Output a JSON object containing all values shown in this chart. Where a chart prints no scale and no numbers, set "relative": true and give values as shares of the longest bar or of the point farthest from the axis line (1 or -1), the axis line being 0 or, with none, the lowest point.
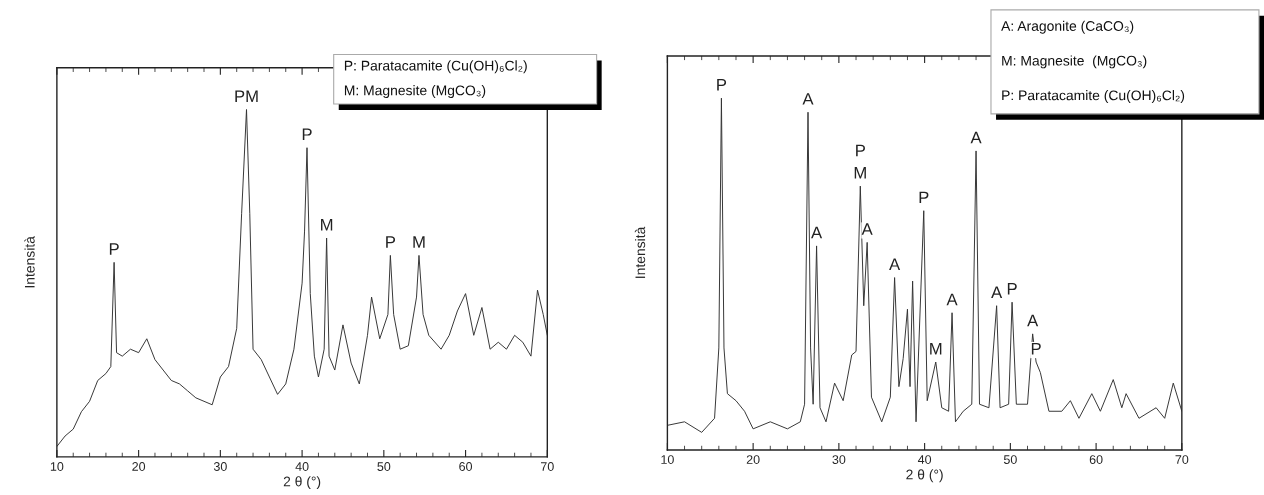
{
  "chart_data": [
    {
      "type": "line",
      "relative": true,
      "xlabel": "2 θ (°)",
      "ylabel": "Intensità",
      "xlim": [
        10,
        70
      ],
      "xticks": [
        10,
        20,
        30,
        40,
        50,
        60,
        70
      ],
      "tick_labels": "x",
      "series": [
        {
          "color": "#333333",
          "x": [
            10,
            11,
            12,
            13,
            14,
            15,
            16,
            16.6,
            17.0,
            17.3,
            18,
            19,
            20,
            21,
            22,
            23,
            24,
            25,
            26,
            27,
            28,
            29,
            30,
            31,
            32,
            32.6,
            33.2,
            33.6,
            34,
            35,
            36,
            37,
            38,
            39,
            40,
            40.3,
            40.6,
            41,
            41.5,
            42,
            42.7,
            43.0,
            43.3,
            44,
            45,
            46,
            47,
            48,
            48.5,
            49.5,
            50.5,
            50.8,
            51.2,
            52,
            53,
            54,
            54.3,
            54.8,
            55.5,
            57,
            58,
            59,
            60,
            61,
            62,
            63,
            64,
            65,
            66,
            67,
            68,
            68.8,
            69.5,
            70
          ],
          "values": [
            0.03,
            0.06,
            0.08,
            0.13,
            0.16,
            0.22,
            0.24,
            0.26,
            0.56,
            0.3,
            0.29,
            0.31,
            0.3,
            0.34,
            0.28,
            0.25,
            0.22,
            0.21,
            0.19,
            0.17,
            0.16,
            0.15,
            0.23,
            0.26,
            0.37,
            0.7,
            1.0,
            0.7,
            0.31,
            0.28,
            0.23,
            0.18,
            0.21,
            0.31,
            0.5,
            0.65,
            0.89,
            0.47,
            0.29,
            0.23,
            0.31,
            0.63,
            0.29,
            0.25,
            0.38,
            0.27,
            0.21,
            0.35,
            0.46,
            0.34,
            0.41,
            0.58,
            0.41,
            0.31,
            0.32,
            0.46,
            0.58,
            0.41,
            0.35,
            0.31,
            0.35,
            0.42,
            0.47,
            0.35,
            0.43,
            0.31,
            0.33,
            0.31,
            0.35,
            0.33,
            0.29,
            0.48,
            0.41,
            0.35
          ]
        }
      ],
      "annotations": [
        "P: Paratacamite (Cu(OH)₆Cl₂)",
        "M: Magnesite (MgCO₃)",
        {
          "text": "P",
          "x": 17.0,
          "y": 0.56
        },
        {
          "text": "PM",
          "x": 33.2,
          "y": 1.0
        },
        {
          "text": "P",
          "x": 40.6,
          "y": 0.89
        },
        {
          "text": "M",
          "x": 43.0,
          "y": 0.63
        },
        {
          "text": "P",
          "x": 50.8,
          "y": 0.58
        },
        {
          "text": "M",
          "x": 54.3,
          "y": 0.58
        }
      ]
    },
    {
      "type": "line",
      "relative": true,
      "xlabel": "2 θ (°)",
      "ylabel": "Intensità",
      "xlim": [
        10,
        70
      ],
      "xticks": [
        10,
        20,
        30,
        40,
        50,
        60,
        70
      ],
      "tick_labels": "x",
      "series": [
        {
          "color": "#333333",
          "x": [
            10,
            12,
            14,
            15.5,
            16.0,
            16.3,
            16.6,
            17,
            18,
            19,
            20,
            22,
            24,
            25.5,
            26.0,
            26.4,
            26.7,
            27.0,
            27.4,
            27.8,
            28.5,
            29.5,
            30.5,
            31.5,
            32.0,
            32.5,
            32.9,
            33.3,
            33.8,
            35,
            36,
            36.5,
            37.0,
            37.5,
            38.0,
            38.3,
            38.6,
            39.0,
            39.9,
            40.3,
            41.3,
            42,
            42.8,
            43.2,
            43.6,
            44.5,
            45.5,
            46.0,
            46.4,
            47.5,
            48.4,
            48.8,
            49.8,
            50.2,
            50.7,
            52,
            52.6,
            53.0,
            53.5,
            54.5,
            56,
            57,
            58,
            59.5,
            60.5,
            62,
            63,
            63.5,
            65,
            67,
            68,
            69,
            70
          ],
          "values": [
            0.07,
            0.08,
            0.05,
            0.09,
            0.29,
            1.0,
            0.29,
            0.16,
            0.14,
            0.11,
            0.06,
            0.08,
            0.06,
            0.08,
            0.13,
            0.96,
            0.29,
            0.13,
            0.58,
            0.12,
            0.08,
            0.19,
            0.14,
            0.27,
            0.28,
            0.75,
            0.41,
            0.59,
            0.15,
            0.08,
            0.15,
            0.49,
            0.18,
            0.26,
            0.4,
            0.18,
            0.48,
            0.08,
            0.68,
            0.14,
            0.25,
            0.12,
            0.11,
            0.39,
            0.08,
            0.11,
            0.13,
            0.85,
            0.13,
            0.12,
            0.41,
            0.12,
            0.13,
            0.42,
            0.13,
            0.13,
            0.33,
            0.25,
            0.22,
            0.11,
            0.11,
            0.14,
            0.09,
            0.16,
            0.11,
            0.2,
            0.12,
            0.16,
            0.09,
            0.12,
            0.09,
            0.19,
            0.11
          ]
        }
      ],
      "annotations": [
        "A: Aragonite (CaCO₃)",
        "M: Magnesite  (MgCO₃)",
        "P: Paratacamite (Cu(OH)₆Cl₂)",
        {
          "text": "P",
          "x": 16.3,
          "y": 1.0
        },
        {
          "text": "A",
          "x": 26.4,
          "y": 0.96
        },
        {
          "text": "A",
          "x": 27.4,
          "y": 0.58
        },
        {
          "text": "M",
          "x": 32.5,
          "y": 0.75
        },
        {
          "text": "P",
          "x": 32.5,
          "y": 0.75
        },
        {
          "text": "A",
          "x": 33.3,
          "y": 0.59
        },
        {
          "text": "A",
          "x": 36.5,
          "y": 0.49
        },
        {
          "text": "P",
          "x": 39.9,
          "y": 0.68
        },
        {
          "text": "M",
          "x": 41.3,
          "y": 0.25
        },
        {
          "text": "A",
          "x": 43.2,
          "y": 0.39
        },
        {
          "text": "A",
          "x": 46.0,
          "y": 0.85
        },
        {
          "text": "A",
          "x": 48.4,
          "y": 0.41
        },
        {
          "text": "P",
          "x": 50.2,
          "y": 0.42
        },
        {
          "text": "A",
          "x": 52.6,
          "y": 0.33
        },
        {
          "text": "P",
          "x": 53.0,
          "y": 0.25
        }
      ]
    }
  ]
}
